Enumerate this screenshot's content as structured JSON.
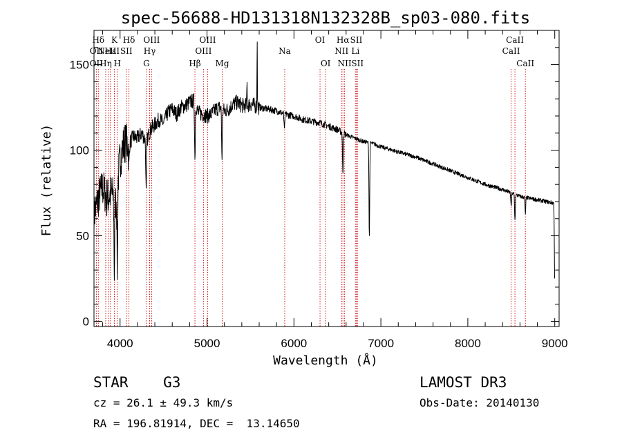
{
  "chart_data": {
    "type": "line",
    "title": "spec-56688-HD131318N132328B_sp03-080.fits",
    "xlabel": "Wavelength (Å)",
    "ylabel": "Flux (relative)",
    "xlim": [
      3700,
      9050
    ],
    "ylim": [
      -3,
      170
    ],
    "xticks": [
      4000,
      5000,
      6000,
      7000,
      8000,
      9000
    ],
    "yticks": [
      0,
      50,
      100,
      150
    ],
    "xtick_labels": [
      "4000",
      "5000",
      "6000",
      "7000",
      "8000",
      "9000"
    ],
    "ytick_labels": [
      "0",
      "50",
      "100",
      "150"
    ],
    "grid": false,
    "continuum": [
      [
        3700,
        62
      ],
      [
        3750,
        72
      ],
      [
        3800,
        78
      ],
      [
        3850,
        72
      ],
      [
        3900,
        75
      ],
      [
        3950,
        70
      ],
      [
        4000,
        95
      ],
      [
        4050,
        105
      ],
      [
        4100,
        103
      ],
      [
        4150,
        108
      ],
      [
        4200,
        107
      ],
      [
        4250,
        110
      ],
      [
        4300,
        105
      ],
      [
        4350,
        112
      ],
      [
        4400,
        115
      ],
      [
        4450,
        118
      ],
      [
        4500,
        116
      ],
      [
        4550,
        122
      ],
      [
        4600,
        124
      ],
      [
        4650,
        121
      ],
      [
        4700,
        125
      ],
      [
        4750,
        126
      ],
      [
        4800,
        128
      ],
      [
        4850,
        129
      ],
      [
        4900,
        122
      ],
      [
        4950,
        121
      ],
      [
        5000,
        120
      ],
      [
        5050,
        121
      ],
      [
        5100,
        124
      ],
      [
        5150,
        125
      ],
      [
        5200,
        123
      ],
      [
        5250,
        124
      ],
      [
        5300,
        127
      ],
      [
        5350,
        128
      ],
      [
        5400,
        126
      ],
      [
        5450,
        126
      ],
      [
        5500,
        127
      ],
      [
        5550,
        126
      ],
      [
        5600,
        125
      ],
      [
        5700,
        124
      ],
      [
        5800,
        123
      ],
      [
        5900,
        121
      ],
      [
        6000,
        120
      ],
      [
        6100,
        118
      ],
      [
        6200,
        117
      ],
      [
        6300,
        116
      ],
      [
        6400,
        114
      ],
      [
        6500,
        112
      ],
      [
        6600,
        109
      ],
      [
        6700,
        107
      ],
      [
        6800,
        105
      ],
      [
        6900,
        104
      ],
      [
        7000,
        102
      ],
      [
        7200,
        99
      ],
      [
        7400,
        96
      ],
      [
        7600,
        92
      ],
      [
        7800,
        88
      ],
      [
        8000,
        84
      ],
      [
        8200,
        80
      ],
      [
        8400,
        77
      ],
      [
        8500,
        75
      ],
      [
        8600,
        73
      ],
      [
        8700,
        72
      ],
      [
        8800,
        71
      ],
      [
        8900,
        70
      ],
      [
        9000,
        69
      ]
    ],
    "absorption_features": [
      {
        "wavelength": 3934,
        "value": 28
      },
      {
        "wavelength": 3968,
        "value": 30
      },
      {
        "wavelength": 4102,
        "value": 92
      },
      {
        "wavelength": 4300,
        "value": 75
      },
      {
        "wavelength": 4861,
        "value": 94
      },
      {
        "wavelength": 5172,
        "value": 96
      },
      {
        "wavelength": 5890,
        "value": 112
      },
      {
        "wavelength": 6563,
        "value": 85
      },
      {
        "wavelength": 6867,
        "value": 49
      },
      {
        "wavelength": 7600,
        "value": 92
      },
      {
        "wavelength": 8498,
        "value": 67
      },
      {
        "wavelength": 8542,
        "value": 59
      },
      {
        "wavelength": 8662,
        "value": 63
      },
      {
        "wavelength": 9000,
        "value": 20
      }
    ],
    "emission_spikes": [
      {
        "wavelength": 5460,
        "value": 140
      },
      {
        "wavelength": 5577,
        "value": 170
      }
    ],
    "line_markers": [
      {
        "label": "Hδ",
        "wavelength": 3750,
        "row": 1
      },
      {
        "label": "OII",
        "wavelength": 3727,
        "row": 2
      },
      {
        "label": "OII",
        "wavelength": 3727,
        "row": 3
      },
      {
        "label": "Hε",
        "wavelength": 3889,
        "row": 2
      },
      {
        "label": "Hη",
        "wavelength": 3835,
        "row": 3
      },
      {
        "label": "K",
        "wavelength": 3934,
        "row": 1
      },
      {
        "label": "NeIII",
        "wavelength": 3869,
        "row": 2
      },
      {
        "label": "H",
        "wavelength": 3968,
        "row": 3
      },
      {
        "label": "Hδ",
        "wavelength": 4102,
        "row": 1
      },
      {
        "label": "SII",
        "wavelength": 4072,
        "row": 2
      },
      {
        "label": "OIII",
        "wavelength": 4363,
        "row": 1
      },
      {
        "label": "Hγ",
        "wavelength": 4340,
        "row": 2
      },
      {
        "label": "G",
        "wavelength": 4304,
        "row": 3
      },
      {
        "label": "OIII",
        "wavelength": 5007,
        "row": 1
      },
      {
        "label": "OIII",
        "wavelength": 4959,
        "row": 2
      },
      {
        "label": "Hβ",
        "wavelength": 4861,
        "row": 3
      },
      {
        "label": "Mg",
        "wavelength": 5175,
        "row": 3
      },
      {
        "label": "Na",
        "wavelength": 5894,
        "row": 2
      },
      {
        "label": "OI",
        "wavelength": 6300,
        "row": 1
      },
      {
        "label": "OI",
        "wavelength": 6364,
        "row": 3
      },
      {
        "label": "Hα",
        "wavelength": 6563,
        "row": 1
      },
      {
        "label": "NII",
        "wavelength": 6548,
        "row": 2
      },
      {
        "label": "NII",
        "wavelength": 6583,
        "row": 3
      },
      {
        "label": "SII",
        "wavelength": 6717,
        "row": 1
      },
      {
        "label": "Li",
        "wavelength": 6707,
        "row": 2
      },
      {
        "label": "SII",
        "wavelength": 6731,
        "row": 3
      },
      {
        "label": "CaII",
        "wavelength": 8542,
        "row": 1
      },
      {
        "label": "CaII",
        "wavelength": 8498,
        "row": 2
      },
      {
        "label": "CaII",
        "wavelength": 8662,
        "row": 3
      }
    ],
    "marker_color": "#cc0000",
    "line_color": "#000000"
  },
  "info": {
    "class_line": "STAR    G3",
    "velocity_line": "cz = 26.1 ± 49.3 km/s",
    "coords_line": "RA = 196.81914, DEC =  13.14650",
    "survey": "LAMOST DR3",
    "obs_date": "Obs-Date: 20140130"
  }
}
